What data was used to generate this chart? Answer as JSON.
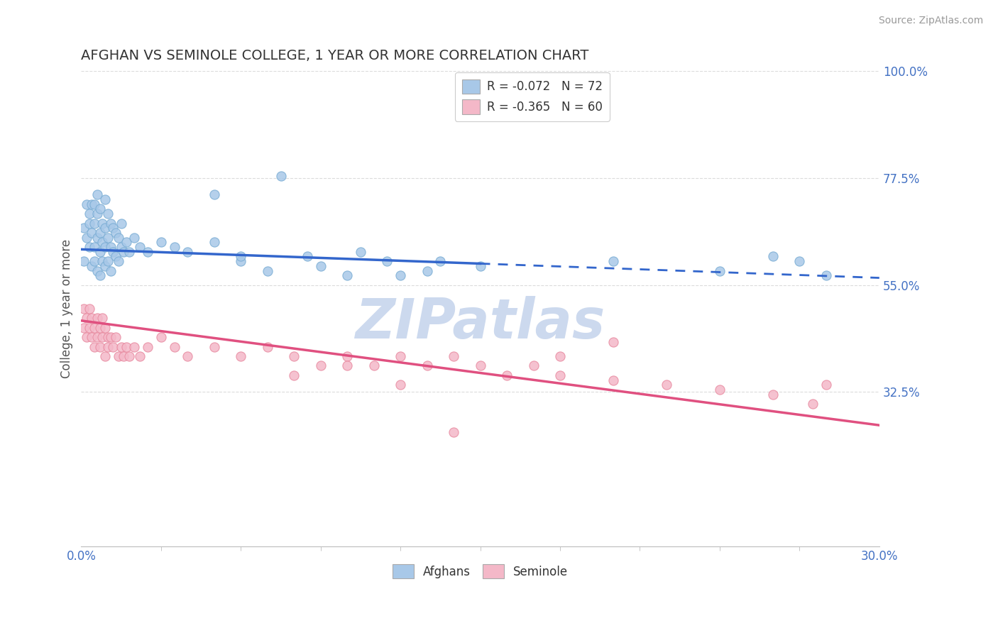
{
  "title": "AFGHAN VS SEMINOLE COLLEGE, 1 YEAR OR MORE CORRELATION CHART",
  "source_text": "Source: ZipAtlas.com",
  "ylabel": "College, 1 year or more",
  "xlim": [
    0.0,
    0.3
  ],
  "ylim": [
    0.0,
    1.0
  ],
  "x_tick_labels": [
    "0.0%",
    "30.0%"
  ],
  "y_tick_labels_right": [
    "32.5%",
    "55.0%",
    "77.5%",
    "100.0%"
  ],
  "y_tick_vals_right": [
    0.325,
    0.55,
    0.775,
    1.0
  ],
  "legend_r1": "R = -0.072",
  "legend_n1": "N = 72",
  "legend_r2": "R = -0.365",
  "legend_n2": "N = 60",
  "legend_label1": "Afghans",
  "legend_label2": "Seminole",
  "blue_dot_color": "#a8c8e8",
  "blue_dot_edge": "#7aadd4",
  "pink_dot_color": "#f4b8c8",
  "pink_dot_edge": "#e88aa0",
  "blue_line_color": "#3366cc",
  "pink_line_color": "#e05080",
  "title_color": "#333333",
  "source_color": "#999999",
  "axis_label_color": "#4472c4",
  "watermark_color": "#ccd9ee",
  "background_color": "#ffffff",
  "grid_color": "#cccccc",
  "blue_line_solid_end": 0.15,
  "blue_line_y0": 0.625,
  "blue_line_y1": 0.565,
  "pink_line_y0": 0.475,
  "pink_line_y1": 0.255,
  "blue_scatter_x": [
    0.001,
    0.001,
    0.002,
    0.002,
    0.003,
    0.003,
    0.003,
    0.004,
    0.004,
    0.004,
    0.005,
    0.005,
    0.005,
    0.005,
    0.006,
    0.006,
    0.006,
    0.006,
    0.007,
    0.007,
    0.007,
    0.007,
    0.008,
    0.008,
    0.008,
    0.009,
    0.009,
    0.009,
    0.009,
    0.01,
    0.01,
    0.01,
    0.011,
    0.011,
    0.011,
    0.012,
    0.012,
    0.013,
    0.013,
    0.014,
    0.014,
    0.015,
    0.015,
    0.016,
    0.017,
    0.018,
    0.02,
    0.022,
    0.025,
    0.03,
    0.035,
    0.04,
    0.05,
    0.06,
    0.07,
    0.085,
    0.1,
    0.115,
    0.13,
    0.05,
    0.06,
    0.075,
    0.09,
    0.105,
    0.12,
    0.135,
    0.15,
    0.2,
    0.24,
    0.26,
    0.27,
    0.28
  ],
  "blue_scatter_y": [
    0.6,
    0.67,
    0.65,
    0.72,
    0.7,
    0.63,
    0.68,
    0.66,
    0.72,
    0.59,
    0.63,
    0.68,
    0.72,
    0.6,
    0.65,
    0.7,
    0.58,
    0.74,
    0.62,
    0.66,
    0.71,
    0.57,
    0.6,
    0.64,
    0.68,
    0.59,
    0.63,
    0.67,
    0.73,
    0.6,
    0.65,
    0.7,
    0.63,
    0.68,
    0.58,
    0.62,
    0.67,
    0.61,
    0.66,
    0.6,
    0.65,
    0.63,
    0.68,
    0.62,
    0.64,
    0.62,
    0.65,
    0.63,
    0.62,
    0.64,
    0.63,
    0.62,
    0.64,
    0.6,
    0.58,
    0.61,
    0.57,
    0.6,
    0.58,
    0.74,
    0.61,
    0.78,
    0.59,
    0.62,
    0.57,
    0.6,
    0.59,
    0.6,
    0.58,
    0.61,
    0.6,
    0.57
  ],
  "pink_scatter_x": [
    0.001,
    0.001,
    0.002,
    0.002,
    0.003,
    0.003,
    0.004,
    0.004,
    0.005,
    0.005,
    0.006,
    0.006,
    0.007,
    0.007,
    0.008,
    0.008,
    0.009,
    0.009,
    0.01,
    0.01,
    0.011,
    0.012,
    0.013,
    0.014,
    0.015,
    0.016,
    0.017,
    0.018,
    0.02,
    0.022,
    0.025,
    0.03,
    0.035,
    0.04,
    0.05,
    0.06,
    0.07,
    0.08,
    0.09,
    0.1,
    0.11,
    0.12,
    0.13,
    0.14,
    0.15,
    0.16,
    0.17,
    0.18,
    0.2,
    0.22,
    0.24,
    0.26,
    0.275,
    0.28,
    0.18,
    0.2,
    0.08,
    0.1,
    0.12,
    0.14
  ],
  "pink_scatter_y": [
    0.46,
    0.5,
    0.44,
    0.48,
    0.46,
    0.5,
    0.44,
    0.48,
    0.46,
    0.42,
    0.48,
    0.44,
    0.46,
    0.42,
    0.48,
    0.44,
    0.46,
    0.4,
    0.44,
    0.42,
    0.44,
    0.42,
    0.44,
    0.4,
    0.42,
    0.4,
    0.42,
    0.4,
    0.42,
    0.4,
    0.42,
    0.44,
    0.42,
    0.4,
    0.42,
    0.4,
    0.42,
    0.4,
    0.38,
    0.4,
    0.38,
    0.4,
    0.38,
    0.4,
    0.38,
    0.36,
    0.38,
    0.36,
    0.35,
    0.34,
    0.33,
    0.32,
    0.3,
    0.34,
    0.4,
    0.43,
    0.36,
    0.38,
    0.34,
    0.24
  ]
}
